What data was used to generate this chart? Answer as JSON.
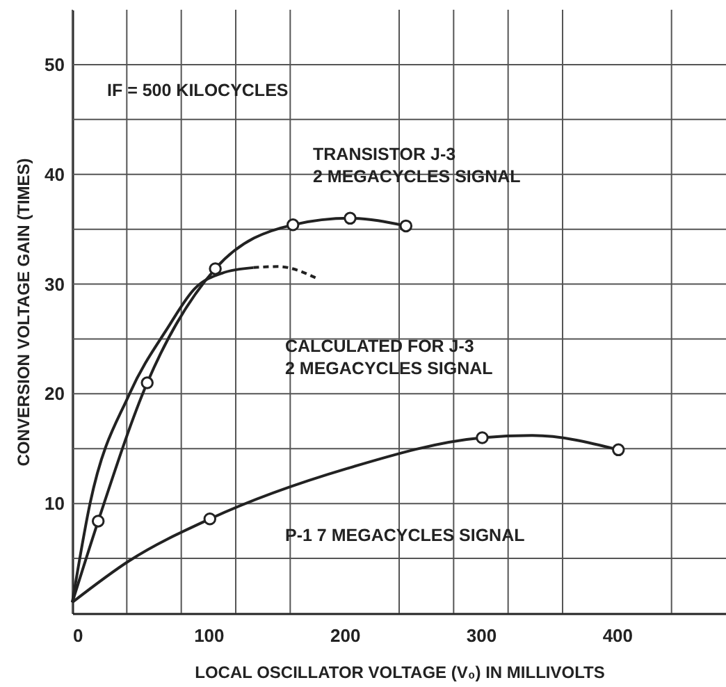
{
  "chart_data": {
    "type": "line",
    "xlabel": "LOCAL OSCILLATOR VOLTAGE (V₀) IN MILLIVOLTS",
    "ylabel": "CONVERSION VOLTAGE GAIN (TIMES)",
    "xlim": [
      0,
      480
    ],
    "ylim": [
      0,
      55
    ],
    "xticks": [
      0,
      {
        "value": 40,
        "label": null
      },
      {
        "value": 80,
        "label": null
      },
      100,
      {
        "value": 120,
        "label": null
      },
      {
        "value": 160,
        "label": null
      },
      200,
      {
        "value": 240,
        "label": null
      },
      {
        "value": 280,
        "label": null
      },
      300,
      {
        "value": 320,
        "label": null
      },
      {
        "value": 360,
        "label": null
      },
      400,
      {
        "value": 440,
        "label": null
      }
    ],
    "yticks": [
      {
        "value": 5,
        "label": null
      },
      10,
      {
        "value": 15,
        "label": null
      },
      20,
      {
        "value": 25,
        "label": null
      },
      30,
      {
        "value": 35,
        "label": null
      },
      40,
      {
        "value": 45,
        "label": null
      },
      50
    ],
    "grid": true,
    "series": [
      {
        "type": "line",
        "color": "#222222",
        "marker": "none",
        "line_style": "solid",
        "x": [
          0,
          19,
          55,
          105,
          162,
          204,
          245
        ],
        "values": [
          1,
          8.4,
          21,
          31.4,
          35.4,
          36,
          35.3
        ]
      },
      {
        "type": "scatter",
        "color": "#222222",
        "marker": "circle",
        "x": [
          19,
          55,
          105,
          162,
          204,
          245
        ],
        "values": [
          8.4,
          21,
          31.4,
          35.4,
          36,
          35.3
        ]
      },
      {
        "type": "line",
        "color": "#222222",
        "marker": "none",
        "line_style": "solid",
        "x": [
          0,
          13,
          42,
          70,
          90,
          110,
          133
        ],
        "values": [
          1,
          10,
          20,
          26,
          29.6,
          31,
          31.5
        ]
      },
      {
        "type": "line",
        "color": "#222222",
        "marker": "none",
        "line_style": "dashed",
        "x": [
          133,
          151,
          180
        ],
        "values": [
          31.5,
          31.6,
          30.5
        ]
      },
      {
        "type": "line",
        "color": "#222222",
        "marker": "none",
        "line_style": "solid",
        "x": [
          0,
          42,
          101,
          202,
          301,
          338,
          401
        ],
        "values": [
          1,
          4.8,
          8.6,
          13.2,
          16,
          16.2,
          14.9
        ]
      },
      {
        "type": "scatter",
        "color": "#222222",
        "marker": "circle",
        "x": [
          101,
          301,
          401
        ],
        "values": [
          8.6,
          16,
          14.9
        ]
      }
    ],
    "annotations": [
      "IF = 500 KILOCYCLES",
      "TRANSISTOR J-3\n2 MEGACYCLES SIGNAL",
      "CALCULATED FOR J-3\n2 MEGACYCLES SIGNAL",
      "P-1 7 MEGACYCLES SIGNAL"
    ]
  }
}
